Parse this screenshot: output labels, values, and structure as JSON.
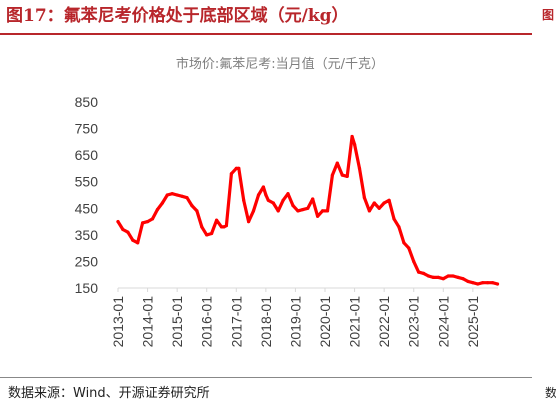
{
  "figure": {
    "title": "图17：氟苯尼考价格处于底部区域（元/kg）",
    "source": "数据来源：Wind、开源证券研究所"
  },
  "colors": {
    "line": "#ff0000",
    "title": "#b8262b",
    "axis": "#404040",
    "chart_title": "#7f7f7f"
  },
  "chart_data": {
    "type": "line",
    "title": "市场价:氟苯尼考:当月值（元/千克）",
    "xlabel": "",
    "ylabel": "",
    "ylim": [
      150,
      850
    ],
    "yticks": [
      150,
      250,
      350,
      450,
      550,
      650,
      750,
      850
    ],
    "xticks": [
      "2013-01",
      "2014-01",
      "2015-01",
      "2016-01",
      "2017-01",
      "2018-01",
      "2019-01",
      "2020-01",
      "2021-01",
      "2022-01",
      "2023-01",
      "2024-01",
      "2025-01"
    ],
    "grid": false,
    "legend": "none",
    "series": [
      {
        "x": [
          "2013-01",
          "2013-03",
          "2013-05",
          "2013-07",
          "2013-09",
          "2013-11",
          "2014-01",
          "2014-03",
          "2014-05",
          "2014-07",
          "2014-09",
          "2014-11",
          "2015-01",
          "2015-03",
          "2015-05",
          "2015-07",
          "2015-09",
          "2015-11",
          "2016-01",
          "2016-03",
          "2016-05",
          "2016-07",
          "2016-08",
          "2016-09",
          "2016-11",
          "2017-01",
          "2017-02",
          "2017-04",
          "2017-06",
          "2017-08",
          "2017-10",
          "2017-12",
          "2018-01",
          "2018-02",
          "2018-04",
          "2018-06",
          "2018-08",
          "2018-10",
          "2018-12",
          "2019-02",
          "2019-04",
          "2019-06",
          "2019-08",
          "2019-10",
          "2019-12",
          "2020-02",
          "2020-04",
          "2020-06",
          "2020-08",
          "2020-10",
          "2020-12",
          "2021-01",
          "2021-03",
          "2021-05",
          "2021-07",
          "2021-09",
          "2021-11",
          "2022-01",
          "2022-03",
          "2022-05",
          "2022-07",
          "2022-09",
          "2022-11",
          "2023-01",
          "2023-03",
          "2023-05",
          "2023-07",
          "2023-09",
          "2023-11",
          "2024-01",
          "2024-03",
          "2024-05",
          "2024-07",
          "2024-09",
          "2024-11",
          "2025-01",
          "2025-03",
          "2025-05",
          "2025-07",
          "2025-09",
          "2025-11"
        ],
        "values": [
          400,
          370,
          360,
          330,
          320,
          395,
          400,
          410,
          445,
          470,
          500,
          505,
          500,
          495,
          490,
          460,
          440,
          380,
          350,
          355,
          405,
          380,
          380,
          385,
          580,
          600,
          600,
          480,
          400,
          440,
          500,
          530,
          500,
          480,
          470,
          440,
          480,
          505,
          460,
          440,
          445,
          450,
          485,
          420,
          440,
          440,
          575,
          620,
          575,
          570,
          720,
          690,
          600,
          490,
          440,
          470,
          450,
          470,
          480,
          410,
          380,
          320,
          300,
          250,
          210,
          205,
          195,
          190,
          190,
          185,
          195,
          195,
          190,
          185,
          175,
          170,
          165,
          170,
          170,
          170,
          165
        ]
      }
    ]
  }
}
